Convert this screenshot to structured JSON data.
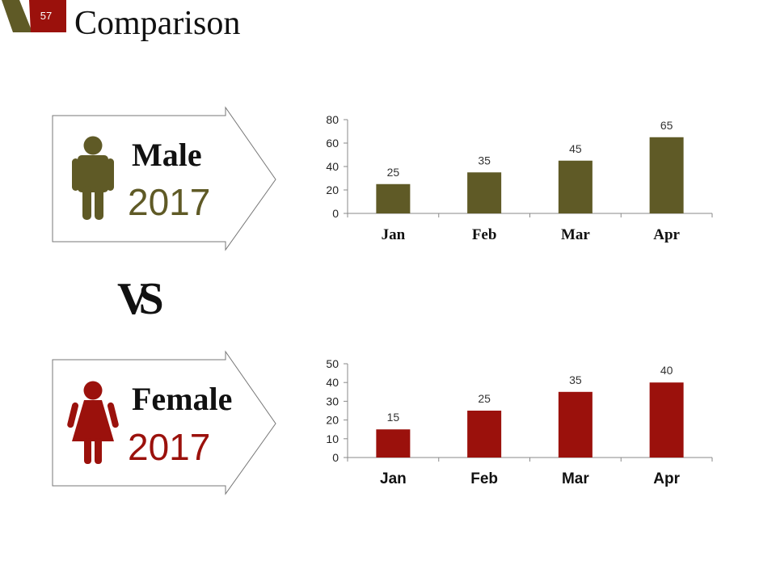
{
  "slide_number": "57",
  "title": "Comparison",
  "vs_label": "VS",
  "colors": {
    "male": "#5f5a26",
    "female": "#9b110c",
    "header_dark": "#5f5a26",
    "header_red": "#9b110c"
  },
  "panels": [
    {
      "label": "Male",
      "year": "2017",
      "icon": "male-person-icon"
    },
    {
      "label": "Female",
      "year": "2017",
      "icon": "female-person-icon"
    }
  ],
  "chart_data": [
    {
      "type": "bar",
      "title": "",
      "categories": [
        "Jan",
        "Feb",
        "Mar",
        "Apr"
      ],
      "values": [
        25,
        35,
        45,
        65
      ],
      "ylim": [
        0,
        80
      ],
      "yticks": [
        0,
        20,
        40,
        60,
        80
      ],
      "xlabel": "",
      "ylabel": "",
      "grid": false,
      "category_font": "serif",
      "color": "#5f5a26"
    },
    {
      "type": "bar",
      "title": "",
      "categories": [
        "Jan",
        "Feb",
        "Mar",
        "Apr"
      ],
      "values": [
        15,
        25,
        35,
        40
      ],
      "ylim": [
        0,
        50
      ],
      "yticks": [
        0,
        10,
        20,
        30,
        40,
        50
      ],
      "xlabel": "",
      "ylabel": "",
      "grid": false,
      "category_font": "sans",
      "color": "#9b110c"
    }
  ]
}
